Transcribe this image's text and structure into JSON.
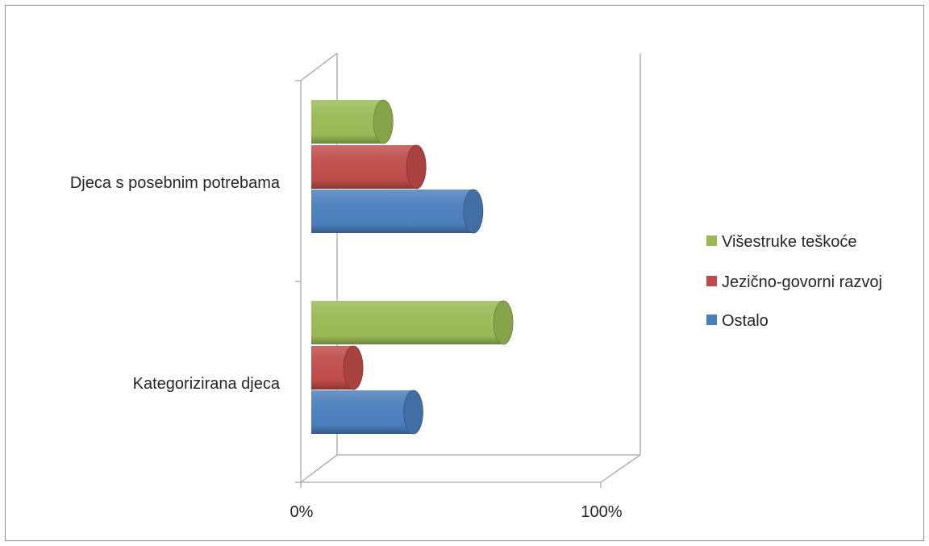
{
  "chart_data": {
    "type": "bar",
    "orientation": "horizontal",
    "style": "3d-cylinder",
    "categories": [
      "Kategorizirana djeca",
      "Djeca s posebnim potrebama"
    ],
    "series": [
      {
        "name": "Ostalo",
        "values": [
          34,
          54
        ],
        "color": "#4a7ebb"
      },
      {
        "name": "Jezično-govorni razvoj",
        "values": [
          14,
          35
        ],
        "color": "#be4b48"
      },
      {
        "name": "Višestruke teškoće",
        "values": [
          64,
          24
        ],
        "color": "#98b954"
      }
    ],
    "x_ticks": [
      "0%",
      "100%"
    ],
    "xlim": [
      0,
      100
    ],
    "legend_position": "right",
    "grid": false
  }
}
